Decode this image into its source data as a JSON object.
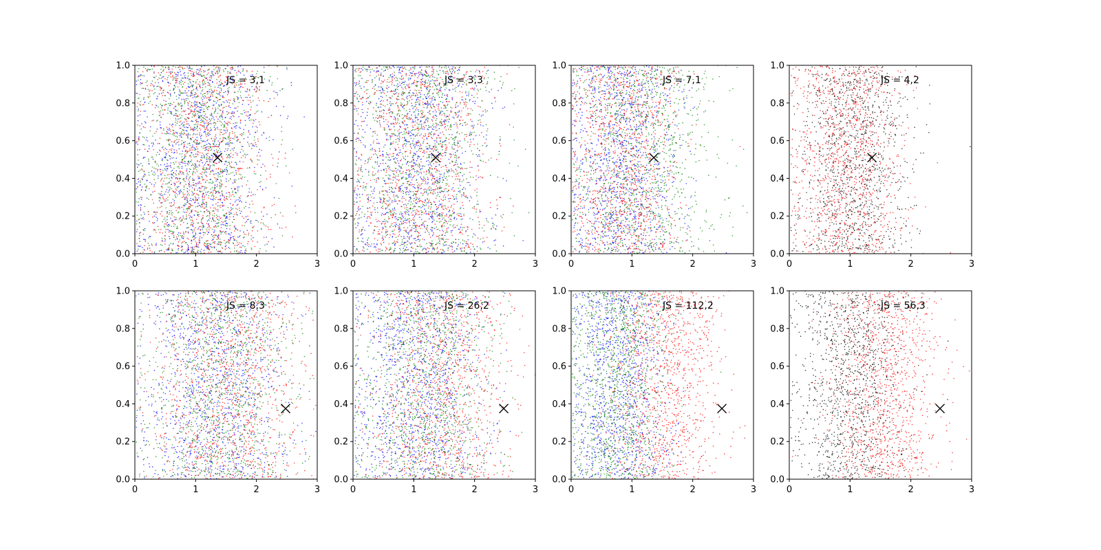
{
  "figure": {
    "background": "#ffffff",
    "tick_color": "#000000"
  },
  "chart_data": [
    {
      "type": "scatter",
      "annotation": "JS = 3,1",
      "xlim": [
        0,
        3
      ],
      "ylim": [
        0,
        1
      ],
      "xticks": [
        "0",
        "1",
        "2",
        "3"
      ],
      "yticks": [
        "0.0",
        "0.2",
        "0.4",
        "0.6",
        "0.8",
        "1.0"
      ],
      "marker": {
        "x": 1.36,
        "y": 0.51,
        "symbol": "x"
      },
      "series": [
        {
          "color": "#0000ff",
          "x_center": 1.05,
          "x_spread": 0.55
        },
        {
          "color": "#ff0000",
          "x_center": 1.1,
          "x_spread": 0.55
        },
        {
          "color": "#008000",
          "x_center": 1.05,
          "x_spread": 0.55
        }
      ]
    },
    {
      "type": "scatter",
      "annotation": "JS = 3,3",
      "xlim": [
        0,
        3
      ],
      "ylim": [
        0,
        1
      ],
      "xticks": [
        "0",
        "1",
        "2",
        "3"
      ],
      "yticks": [
        "0.0",
        "0.2",
        "0.4",
        "0.6",
        "0.8",
        "1.0"
      ],
      "marker": {
        "x": 1.36,
        "y": 0.51,
        "symbol": "x"
      },
      "series": [
        {
          "color": "#0000ff",
          "x_center": 1.05,
          "x_spread": 0.55
        },
        {
          "color": "#ff0000",
          "x_center": 1.1,
          "x_spread": 0.55
        },
        {
          "color": "#008000",
          "x_center": 1.15,
          "x_spread": 0.6
        }
      ]
    },
    {
      "type": "scatter",
      "annotation": "JS = 7,1",
      "xlim": [
        0,
        3
      ],
      "ylim": [
        0,
        1
      ],
      "xticks": [
        "0",
        "1",
        "2",
        "3"
      ],
      "yticks": [
        "0.0",
        "0.2",
        "0.4",
        "0.6",
        "0.8",
        "1.0"
      ],
      "marker": {
        "x": 1.36,
        "y": 0.51,
        "symbol": "x"
      },
      "series": [
        {
          "color": "#0000ff",
          "x_center": 0.85,
          "x_spread": 0.45
        },
        {
          "color": "#ff0000",
          "x_center": 0.85,
          "x_spread": 0.45
        },
        {
          "color": "#008000",
          "x_center": 1.15,
          "x_spread": 0.6
        }
      ]
    },
    {
      "type": "scatter",
      "annotation": "JS = 4,2",
      "xlim": [
        0,
        3
      ],
      "ylim": [
        0,
        1
      ],
      "xticks": [
        "0",
        "1",
        "2",
        "3"
      ],
      "yticks": [
        "0.0",
        "0.2",
        "0.4",
        "0.6",
        "0.8",
        "1.0"
      ],
      "marker": {
        "x": 1.36,
        "y": 0.51,
        "symbol": "x"
      },
      "series": [
        {
          "color": "#ff0000",
          "x_center": 0.95,
          "x_spread": 0.45
        },
        {
          "color": "#000000",
          "x_center": 1.05,
          "x_spread": 0.45
        }
      ]
    },
    {
      "type": "scatter",
      "annotation": "JS = 8,3",
      "xlim": [
        0,
        3
      ],
      "ylim": [
        0,
        1
      ],
      "xticks": [
        "0",
        "1",
        "2",
        "3"
      ],
      "yticks": [
        "0.0",
        "0.2",
        "0.4",
        "0.6",
        "0.8",
        "1.0"
      ],
      "marker": {
        "x": 2.48,
        "y": 0.375,
        "symbol": "x"
      },
      "series": [
        {
          "color": "#0000ff",
          "x_center": 1.3,
          "x_spread": 0.6
        },
        {
          "color": "#ff0000",
          "x_center": 1.55,
          "x_spread": 0.6
        },
        {
          "color": "#008000",
          "x_center": 1.4,
          "x_spread": 0.6
        }
      ]
    },
    {
      "type": "scatter",
      "annotation": "JS = 26,2",
      "xlim": [
        0,
        3
      ],
      "ylim": [
        0,
        1
      ],
      "xticks": [
        "0",
        "1",
        "2",
        "3"
      ],
      "yticks": [
        "0.0",
        "0.2",
        "0.4",
        "0.6",
        "0.8",
        "1.0"
      ],
      "marker": {
        "x": 2.48,
        "y": 0.375,
        "symbol": "x"
      },
      "series": [
        {
          "color": "#0000ff",
          "x_center": 1.05,
          "x_spread": 0.55
        },
        {
          "color": "#ff0000",
          "x_center": 1.45,
          "x_spread": 0.55
        },
        {
          "color": "#008000",
          "x_center": 1.2,
          "x_spread": 0.55
        }
      ]
    },
    {
      "type": "scatter",
      "annotation": "JS = 112,2",
      "xlim": [
        0,
        3
      ],
      "ylim": [
        0,
        1
      ],
      "xticks": [
        "0",
        "1",
        "2",
        "3"
      ],
      "yticks": [
        "0.0",
        "0.2",
        "0.4",
        "0.6",
        "0.8",
        "1.0"
      ],
      "marker": {
        "x": 2.48,
        "y": 0.375,
        "symbol": "x"
      },
      "series": [
        {
          "color": "#0000ff",
          "x_center": 0.8,
          "x_spread": 0.4
        },
        {
          "color": "#ff0000",
          "x_center": 1.55,
          "x_spread": 0.45
        },
        {
          "color": "#008000",
          "x_center": 0.75,
          "x_spread": 0.4
        }
      ]
    },
    {
      "type": "scatter",
      "annotation": "JS = 56,3",
      "xlim": [
        0,
        3
      ],
      "ylim": [
        0,
        1
      ],
      "xticks": [
        "0",
        "1",
        "2",
        "3"
      ],
      "yticks": [
        "0.0",
        "0.2",
        "0.4",
        "0.6",
        "0.8",
        "1.0"
      ],
      "marker": {
        "x": 2.48,
        "y": 0.375,
        "symbol": "x"
      },
      "series": [
        {
          "color": "#ff0000",
          "x_center": 1.55,
          "x_spread": 0.45
        },
        {
          "color": "#000000",
          "x_center": 1.0,
          "x_spread": 0.45
        }
      ]
    }
  ]
}
